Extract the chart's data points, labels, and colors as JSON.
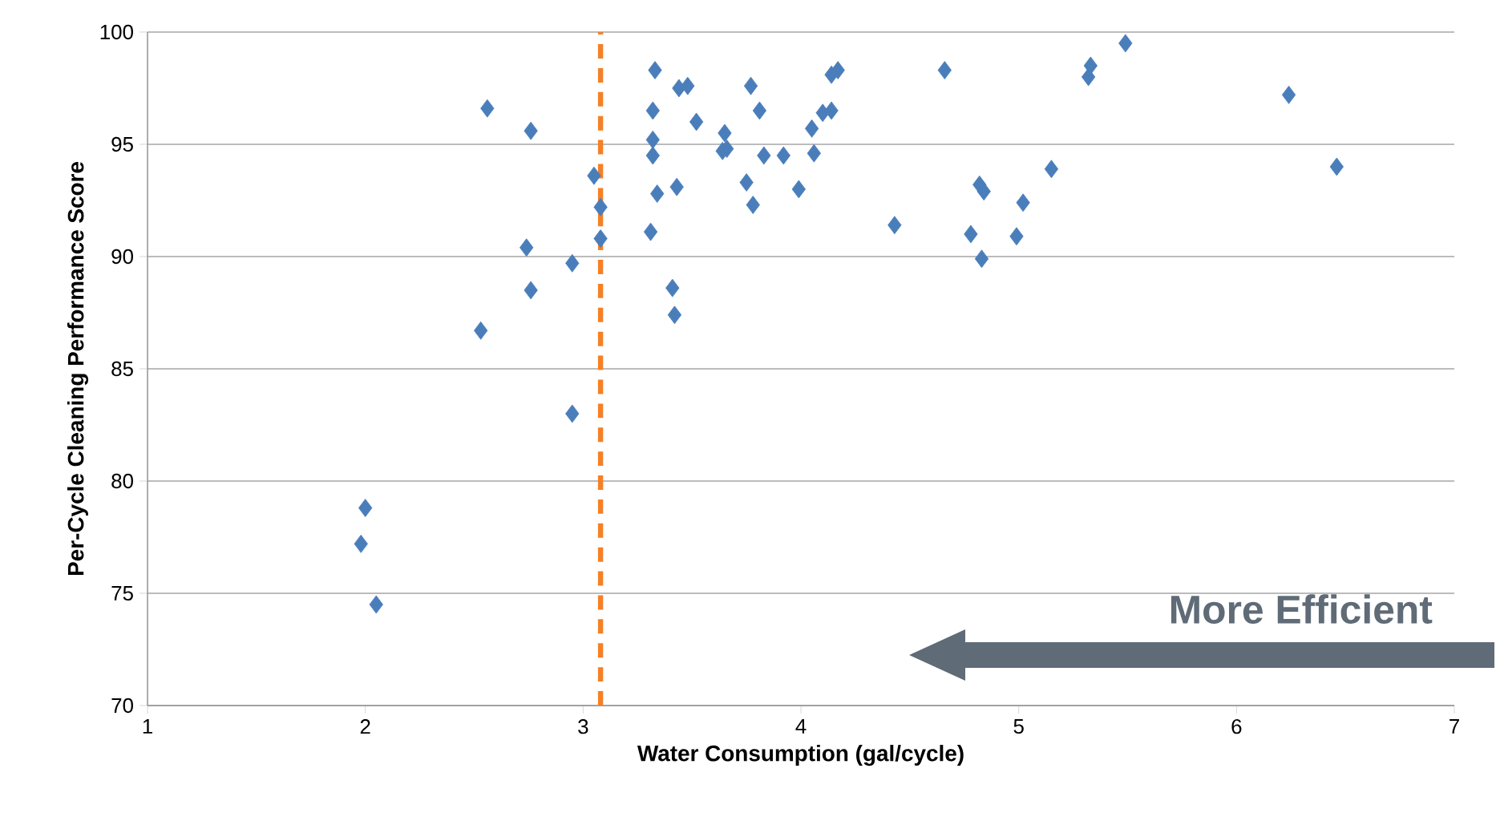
{
  "chart_data": {
    "type": "scatter",
    "xlabel": "Water Consumption (gal/cycle)",
    "ylabel": "Per-Cycle Cleaning Performance Score",
    "xlim": [
      1,
      7
    ],
    "xticks": [
      1,
      2,
      3,
      4,
      5,
      6,
      7
    ],
    "ylim": [
      70,
      100
    ],
    "yticks": [
      70,
      75,
      80,
      85,
      90,
      95,
      100
    ],
    "grid": "y",
    "marker": "diamond",
    "series": [
      {
        "color": "#4a7ebb",
        "x": [
          2.0,
          1.98,
          2.05,
          2.53,
          2.56,
          2.76,
          2.74,
          2.76,
          2.95,
          2.95,
          3.05,
          3.08,
          3.08,
          3.31,
          3.32,
          3.32,
          3.32,
          3.33,
          3.34,
          3.41,
          3.42,
          3.43,
          3.44,
          3.48,
          3.52,
          3.64,
          3.65,
          3.66,
          3.75,
          3.77,
          3.78,
          3.81,
          3.83,
          3.92,
          3.99,
          4.05,
          4.06,
          4.1,
          4.14,
          4.14,
          4.17,
          4.43,
          4.66,
          4.78,
          4.82,
          4.83,
          4.84,
          4.99,
          5.02,
          5.15,
          5.32,
          5.33,
          5.49,
          6.24,
          6.46
        ],
        "values": [
          78.8,
          77.2,
          74.5,
          86.7,
          96.6,
          95.6,
          90.4,
          88.5,
          89.7,
          83.0,
          93.6,
          92.2,
          90.8,
          91.1,
          96.5,
          95.2,
          94.5,
          98.3,
          92.8,
          88.6,
          87.4,
          93.1,
          97.5,
          97.6,
          96.0,
          94.7,
          95.5,
          94.8,
          93.3,
          97.6,
          92.3,
          96.5,
          94.5,
          94.5,
          93.0,
          95.7,
          94.6,
          96.4,
          96.5,
          98.1,
          98.3,
          91.4,
          98.3,
          91.0,
          93.2,
          89.9,
          92.9,
          90.9,
          92.4,
          93.9,
          98.0,
          98.5,
          99.5,
          97.2,
          94.0
        ]
      }
    ],
    "ref_lines": [
      {
        "axis": "x",
        "value": 3.08,
        "color": "#f58025",
        "line_style": "dashed"
      }
    ],
    "annotations": [
      "More Efficient"
    ]
  }
}
